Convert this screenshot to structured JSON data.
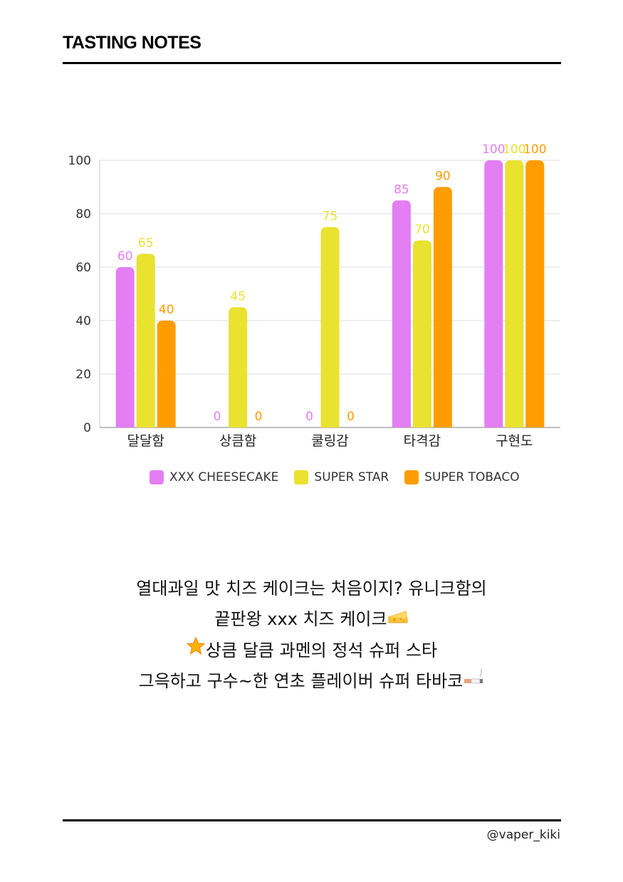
{
  "header": {
    "title": "TASTING NOTES"
  },
  "chart_data": {
    "type": "bar",
    "categories": [
      "달달함",
      "상큼함",
      "쿨링감",
      "타격감",
      "구현도"
    ],
    "series": [
      {
        "name": "XXX CHEESECAKE",
        "values": [
          60,
          0,
          0,
          85,
          100
        ],
        "color": "#e37ef3"
      },
      {
        "name": "SUPER STAR",
        "values": [
          65,
          45,
          75,
          70,
          100
        ],
        "color": "#e9e22f"
      },
      {
        "name": "SUPER TOBACO",
        "values": [
          40,
          0,
          0,
          90,
          100
        ],
        "color": "#ff9d00"
      }
    ],
    "yticks": [
      0,
      20,
      40,
      60,
      80,
      100
    ],
    "ylim": [
      0,
      100
    ],
    "grid": true,
    "legend_position": "bottom"
  },
  "notes": {
    "line1": "열대과일 맛 치즈 케이크는 처음이지? 유니크함의",
    "line2": "끝판왕 xxx 치즈 케이크",
    "line3": "상큼 달큼 과멘의 정석 슈퍼 스타",
    "line4": "그윽하고 구수~한 연초 플레이버 슈퍼 타바코",
    "icons": [
      "cheese-icon",
      "star-icon",
      "cigarette-icon"
    ]
  },
  "footer": {
    "handle": "@vaper_kiki"
  }
}
